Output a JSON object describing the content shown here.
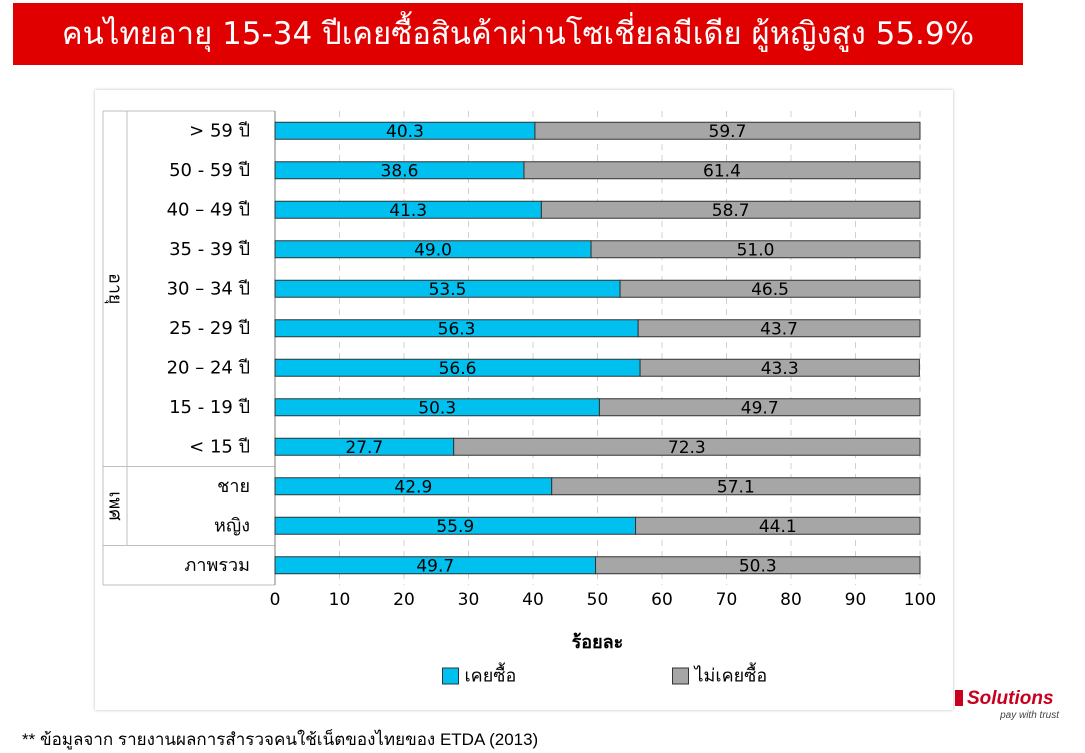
{
  "title": "คนไทยอายุ 15-34 ปีเคยซื้อสินค้าผ่านโซเชี่ยลมีเดีย ผู้หญิงสูง 55.9%",
  "footnote": "** ข้อมูลจาก รายงานผลการสำรวจคนใช้เน็ตของไทยของ ETDA (2013)",
  "logo": {
    "word": "Solutions",
    "tagline": "pay with trust"
  },
  "chart_data": {
    "type": "bar",
    "orientation": "horizontal",
    "stacked": true,
    "categories": [
      "> 59 ปี",
      "50 - 59 ปี",
      "40 – 49 ปี",
      "35 - 39 ปี",
      "30 – 34 ปี",
      "25 - 29 ปี",
      "20 – 24 ปี",
      "15 - 19 ปี",
      "< 15 ปี",
      "ชาย",
      "หญิง",
      "ภาพรวม"
    ],
    "groups": [
      {
        "label": "อายุ",
        "categories": [
          "> 59 ปี",
          "50 - 59 ปี",
          "40 – 49 ปี",
          "35 - 39 ปี",
          "30 – 34 ปี",
          "25 - 29 ปี",
          "20 – 24 ปี",
          "15 - 19 ปี",
          "< 15 ปี"
        ]
      },
      {
        "label": "เพศ",
        "categories": [
          "ชาย",
          "หญิง"
        ]
      },
      {
        "label": "",
        "categories": [
          "ภาพรวม"
        ]
      }
    ],
    "series": [
      {
        "name": "เคยซื้อ",
        "color": "#00c0f0",
        "values": [
          40.3,
          38.6,
          41.3,
          49.0,
          53.5,
          56.3,
          56.6,
          50.3,
          27.7,
          42.9,
          55.9,
          49.7
        ]
      },
      {
        "name": "ไม่เคยซื้อ",
        "color": "#a6a6a6",
        "values": [
          59.7,
          61.4,
          58.7,
          51.0,
          46.5,
          43.7,
          43.3,
          49.7,
          72.3,
          57.1,
          44.1,
          50.3
        ]
      }
    ],
    "value_labels": [
      [
        "40.3",
        "38.6",
        "41.3",
        "49.0",
        "53.5",
        "56.3",
        "56.6",
        "50.3",
        "27.7",
        "42.9",
        "55.9",
        "49.7"
      ],
      [
        "59.7",
        "61.4",
        "58.7",
        "51.0",
        "46.5",
        "43.7",
        "43.3",
        "49.7",
        "72.3",
        "57.1",
        "44.1",
        "50.3"
      ]
    ],
    "xlabel": "ร้อยละ",
    "xlim": [
      0,
      100
    ],
    "xticks": [
      "0",
      "10",
      "20",
      "30",
      "40",
      "50",
      "60",
      "70",
      "80",
      "90",
      "100"
    ],
    "grid": "vertical dashed",
    "legend_position": "bottom"
  }
}
